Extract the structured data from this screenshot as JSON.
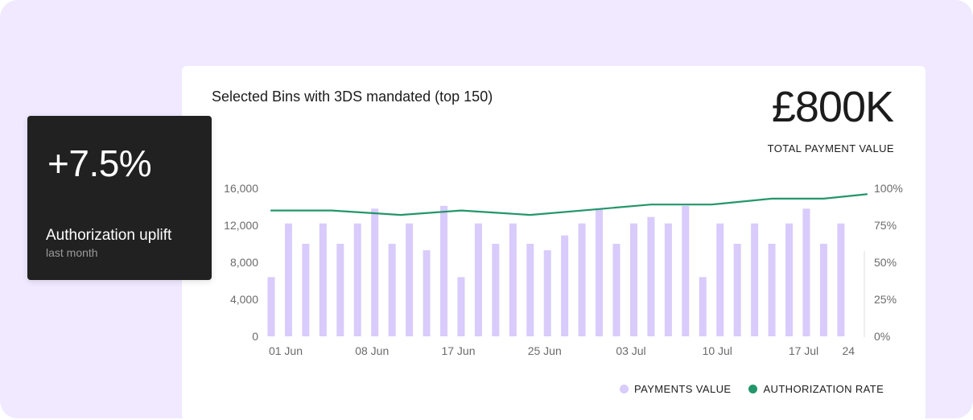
{
  "kpi": {
    "value": "£800K",
    "label": "TOTAL PAYMENT VALUE"
  },
  "uplift": {
    "value": "+7.5%",
    "label": "Authorization uplift",
    "sublabel": "last month"
  },
  "colors": {
    "page_bg": "#f0e9ff",
    "bar": "#d9cbfb",
    "line": "#23966a",
    "dark_card": "#212121"
  },
  "chart_data": {
    "type": "bar",
    "title": "Selected Bins with 3DS mandated (top 150)",
    "xlabel": "",
    "ylabel": "",
    "ylim": [
      0,
      16000
    ],
    "y2lim": [
      0,
      100
    ],
    "yticks": [
      "0",
      "4,000",
      "8,000",
      "12,000",
      "16,000"
    ],
    "y2ticks": [
      "0%",
      "25%",
      "50%",
      "75%",
      "100%"
    ],
    "xticks": [
      {
        "index": 0,
        "label": "01 Jun"
      },
      {
        "index": 5,
        "label": "08 Jun"
      },
      {
        "index": 10,
        "label": "17 Jun"
      },
      {
        "index": 15,
        "label": "25 Jun"
      },
      {
        "index": 20,
        "label": "03 Jul"
      },
      {
        "index": 25,
        "label": "10 Jul"
      },
      {
        "index": 30,
        "label": "17 Jul"
      },
      {
        "index": 34,
        "label": "24"
      }
    ],
    "grid": false,
    "legend": "bottom-right",
    "series": [
      {
        "name": "PAYMENTS VALUE",
        "type": "bar",
        "color": "#d9cbfb",
        "values": [
          6400,
          12200,
          10000,
          12200,
          10000,
          12200,
          13800,
          10000,
          12200,
          9300,
          14100,
          6400,
          12200,
          10000,
          12200,
          10000,
          9300,
          10900,
          12200,
          13800,
          10000,
          12200,
          12900,
          12200,
          14100,
          6400,
          12200,
          10000,
          12200,
          10000,
          12200,
          13800,
          10000,
          12200
        ]
      },
      {
        "name": "AUTHORIZATION RATE",
        "type": "line",
        "axis": "right",
        "color": "#23966a",
        "values": [
          {
            "x": 0,
            "y": 85
          },
          {
            "x": 3.5,
            "y": 85
          },
          {
            "x": 7.5,
            "y": 82
          },
          {
            "x": 11,
            "y": 85
          },
          {
            "x": 15,
            "y": 82
          },
          {
            "x": 19,
            "y": 86
          },
          {
            "x": 22,
            "y": 89
          },
          {
            "x": 25.5,
            "y": 89
          },
          {
            "x": 29,
            "y": 93
          },
          {
            "x": 32,
            "y": 93
          },
          {
            "x": 34.5,
            "y": 96
          }
        ]
      }
    ]
  }
}
